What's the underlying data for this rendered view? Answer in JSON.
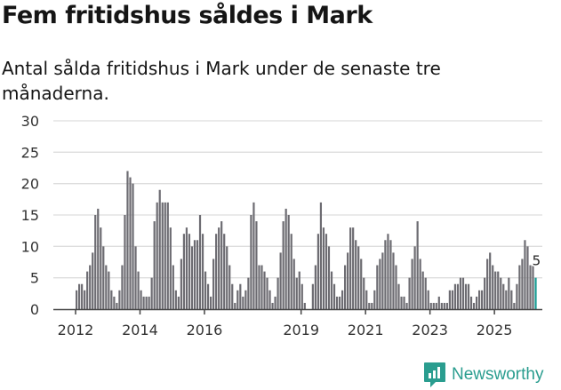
{
  "header": {
    "title": "Fem fritidshus såldes i Mark",
    "subtitle": "Antal sålda fritidshus i Mark under de senaste tre månaderna."
  },
  "brand": {
    "name": "Newsworthy",
    "color": "#2a9d8f"
  },
  "colors": {
    "bar": "#6d6c72",
    "highlight": "#1a9c94",
    "grid": "#dddddd",
    "axis": "#444444"
  },
  "chart_data": {
    "type": "bar",
    "title": "Fem fritidshus såldes i Mark",
    "subtitle": "Antal sålda fritidshus i Mark under de senaste tre månaderna.",
    "xlabel": "",
    "ylabel": "",
    "ylim": [
      0,
      30
    ],
    "yticks": [
      0,
      5,
      10,
      15,
      20,
      25,
      30
    ],
    "xticks": [
      "2012",
      "2014",
      "2016",
      "2019",
      "2021",
      "2023",
      "2025"
    ],
    "grid": true,
    "legend": "none",
    "start": "2012-01",
    "frequency": "monthly (rolling 3-month sum)",
    "annotation": {
      "label": "5",
      "position": "last bar"
    },
    "values": [
      3,
      4,
      4,
      3,
      6,
      7,
      9,
      15,
      16,
      13,
      10,
      7,
      6,
      3,
      2,
      1,
      3,
      7,
      15,
      22,
      21,
      20,
      10,
      6,
      3,
      2,
      2,
      2,
      5,
      14,
      17,
      19,
      17,
      17,
      17,
      13,
      7,
      3,
      2,
      8,
      12,
      13,
      12,
      10,
      11,
      11,
      15,
      12,
      6,
      4,
      2,
      8,
      12,
      13,
      14,
      12,
      10,
      7,
      4,
      1,
      3,
      4,
      2,
      3,
      5,
      15,
      17,
      14,
      7,
      7,
      6,
      5,
      3,
      1,
      2,
      5,
      9,
      14,
      16,
      15,
      12,
      8,
      5,
      6,
      4,
      1,
      0,
      0,
      4,
      7,
      12,
      17,
      13,
      12,
      10,
      6,
      4,
      2,
      2,
      3,
      7,
      9,
      13,
      13,
      11,
      10,
      8,
      5,
      3,
      1,
      1,
      3,
      7,
      8,
      9,
      11,
      12,
      11,
      9,
      7,
      4,
      2,
      2,
      1,
      5,
      8,
      10,
      14,
      8,
      6,
      5,
      3,
      1,
      1,
      1,
      2,
      1,
      1,
      1,
      3,
      3,
      4,
      4,
      5,
      5,
      4,
      4,
      2,
      1,
      2,
      3,
      3,
      5,
      8,
      9,
      7,
      6,
      6,
      5,
      4,
      3,
      5,
      3,
      1,
      4,
      7,
      8,
      11,
      10,
      7,
      7,
      5
    ]
  }
}
